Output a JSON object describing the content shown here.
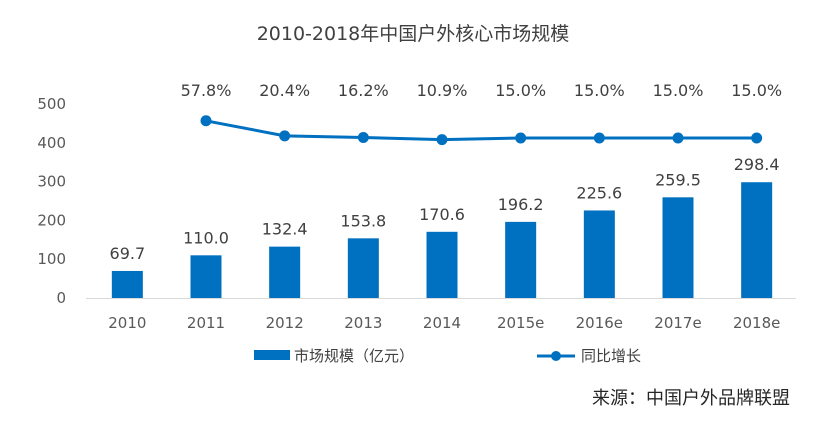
{
  "chart_data": {
    "type": "bar",
    "title": "2010-2018年中国户外核心市场规模",
    "categories": [
      "2010",
      "2011",
      "2012",
      "2013",
      "2014",
      "2015e",
      "2016e",
      "2017e",
      "2018e"
    ],
    "series": [
      {
        "name": "市场规模（亿元）",
        "type": "bar",
        "values": [
          69.7,
          110.0,
          132.4,
          153.8,
          170.6,
          196.2,
          225.6,
          259.5,
          298.4
        ],
        "labels": [
          "69.7",
          "110.0",
          "132.4",
          "153.8",
          "170.6",
          "196.2",
          "225.6",
          "259.5",
          "298.4"
        ],
        "color": "#0070C0"
      },
      {
        "name": "同比增长",
        "type": "line",
        "values": [
          null,
          57.8,
          20.4,
          16.2,
          10.9,
          15.0,
          15.0,
          15.0,
          15.0
        ],
        "labels": [
          "",
          "57.8%",
          "20.4%",
          "16.2%",
          "10.9%",
          "15.0%",
          "15.0%",
          "15.0%",
          "15.0%"
        ],
        "color": "#0070C0"
      }
    ],
    "yticks": [
      "0",
      "100",
      "200",
      "300",
      "400",
      "500"
    ],
    "ylim": [
      0,
      500
    ],
    "grid": false,
    "legend_position": "bottom",
    "source": "来源：中国户外品牌联盟"
  }
}
